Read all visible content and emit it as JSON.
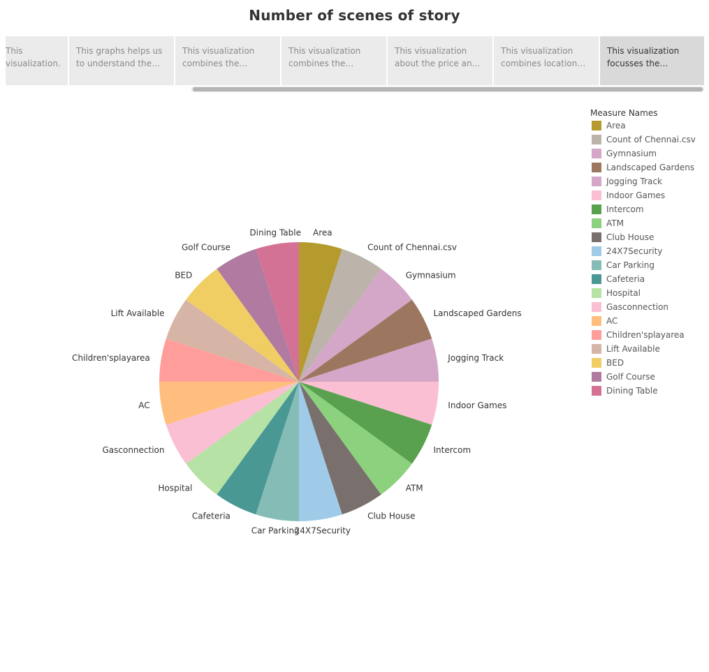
{
  "story": {
    "title": "Number of scenes of story",
    "tabs": [
      {
        "text": "This visualization..."
      },
      {
        "text": "This graphs helps us to understand the fact o..."
      },
      {
        "text": "This visualization combines the locatio..."
      },
      {
        "text": "This visualization combines the locatio..."
      },
      {
        "text": "This visualization about the price and m..."
      },
      {
        "text": "This visualization combines location an..."
      },
      {
        "text": "This visualization focusses the availabil..."
      }
    ]
  },
  "legend": {
    "title": "Measure Names",
    "items": [
      {
        "label": "Area",
        "color": "#b59a2d"
      },
      {
        "label": "Count of Chennai.csv",
        "color": "#bcb3ab"
      },
      {
        "label": "Gymnasium",
        "color": "#d4a6c8"
      },
      {
        "label": "Landscaped Gardens",
        "color": "#9d7660"
      },
      {
        "label": "Jogging Track",
        "color": "#d4a6c8"
      },
      {
        "label": "Indoor Games",
        "color": "#fabfd2"
      },
      {
        "label": "Intercom",
        "color": "#59a14f"
      },
      {
        "label": "ATM",
        "color": "#8cd17d"
      },
      {
        "label": "Club House",
        "color": "#79706e"
      },
      {
        "label": "24X7Security",
        "color": "#a0cbe8"
      },
      {
        "label": "Car Parking",
        "color": "#86bcb6"
      },
      {
        "label": "Cafeteria",
        "color": "#499894"
      },
      {
        "label": "Hospital",
        "color": "#b6e2a5"
      },
      {
        "label": "Gasconnection",
        "color": "#fabfd2"
      },
      {
        "label": "AC",
        "color": "#ffbe7d"
      },
      {
        "label": "Children'splayarea",
        "color": "#ff9d9a"
      },
      {
        "label": "Lift Available",
        "color": "#d7b5a6"
      },
      {
        "label": "BED",
        "color": "#f1ce63"
      },
      {
        "label": "Golf Course",
        "color": "#b07aa1"
      },
      {
        "label": "Dining Table",
        "color": "#d37295"
      }
    ]
  },
  "chart_data": {
    "type": "pie",
    "title": "",
    "categories": [
      "Area",
      "Count of Chennai.csv",
      "Gymnasium",
      "Landscaped Gardens",
      "Jogging Track",
      "Indoor Games",
      "Intercom",
      "ATM",
      "Club House",
      "24X7Security",
      "Car Parking",
      "Cafeteria",
      "Hospital",
      "Gasconnection",
      "AC",
      "Children'splayarea",
      "Lift Available",
      "BED",
      "Golf Course",
      "Dining Table"
    ],
    "values": [
      5,
      5,
      5,
      5,
      5,
      5,
      5,
      5,
      5,
      5,
      5,
      5,
      5,
      5,
      5,
      5,
      5,
      5,
      5,
      5
    ],
    "legend": "right"
  }
}
